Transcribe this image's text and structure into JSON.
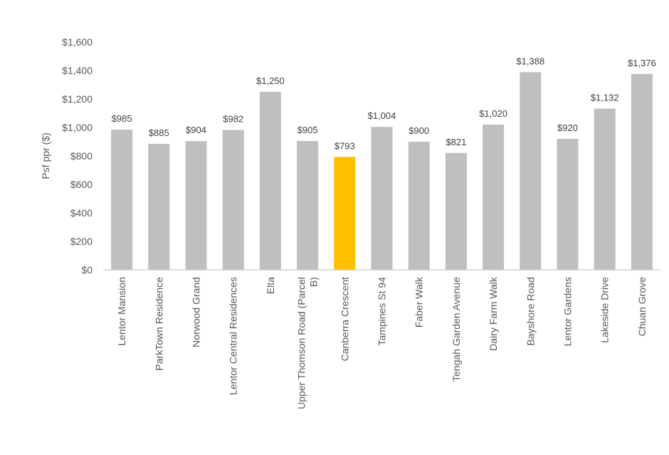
{
  "chart_data": {
    "type": "bar",
    "title": "",
    "xlabel": "",
    "ylabel": "Psf ppr ($)",
    "ylim": [
      0,
      1600
    ],
    "yticks": [
      0,
      200,
      400,
      600,
      800,
      1000,
      1200,
      1400,
      1600
    ],
    "ytick_labels": [
      "$0",
      "$200",
      "$400",
      "$600",
      "$800",
      "$1,000",
      "$1,200",
      "$1,400",
      "$1,600"
    ],
    "grid": false,
    "legend": "none",
    "categories": [
      "Lentor Mansion",
      "ParkTown Residence",
      "Norwood Grand",
      "Lentor Central Residences",
      "Elta",
      "Upper Thomson Road (Parcel B)",
      "Canberra Crescent",
      "Tampines St 94",
      "Faber Walk",
      "Tengah Garden Avenue",
      "Dairy Farm Walk",
      "Bayshore Road",
      "Lentor Gardens",
      "Lakeside Drive",
      "Chuan Grove"
    ],
    "category_lines": [
      [
        "Lentor Mansion"
      ],
      [
        "ParkTown Residence"
      ],
      [
        "Norwood Grand"
      ],
      [
        "Lentor Central Residences"
      ],
      [
        "Elta"
      ],
      [
        "Upper Thomson Road (Parcel",
        "B)"
      ],
      [
        "Canberra Crescent"
      ],
      [
        "Tampines St 94"
      ],
      [
        "Faber Walk"
      ],
      [
        "Tengah Garden Avenue"
      ],
      [
        "Dairy Farm Walk"
      ],
      [
        "Bayshore Road"
      ],
      [
        "Lentor Gardens"
      ],
      [
        "Lakeside Drive"
      ],
      [
        "Chuan Grove"
      ]
    ],
    "values": [
      985,
      885,
      904,
      982,
      1250,
      905,
      793,
      1004,
      900,
      821,
      1020,
      1388,
      920,
      1132,
      1376
    ],
    "value_labels": [
      "$985",
      "$885",
      "$904",
      "$982",
      "$1,250",
      "$905",
      "$793",
      "$1,004",
      "$900",
      "$821",
      "$1,020",
      "$1,388",
      "$920",
      "$1,132",
      "$1,376"
    ],
    "highlight_index": 6,
    "colors": {
      "bar": "#bfbfbf",
      "highlight": "#ffc000",
      "axis": "#bfbfbf",
      "text": "#595959"
    }
  }
}
